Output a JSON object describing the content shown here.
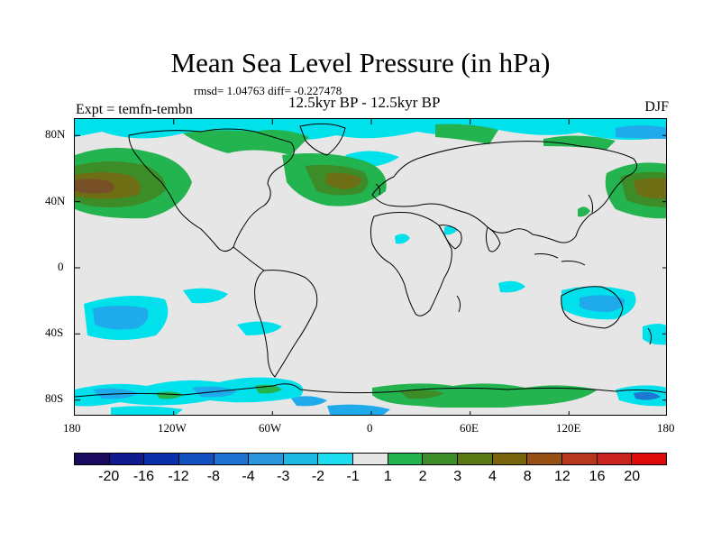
{
  "title": "Mean Sea Level Pressure (in hPa)",
  "stats": "rmsd= 1.04763 diff= -0.227478",
  "period": "12.5kyr BP - 12.5kyr BP",
  "expt": "Expt = temfn-tembn",
  "season": "DJF",
  "lat_labels": [
    "80N",
    "40N",
    "0",
    "40S",
    "80S"
  ],
  "lon_labels": [
    "180",
    "120W",
    "60W",
    "0",
    "60E",
    "120E",
    "180"
  ],
  "colorbar": {
    "colors": [
      "#1a0a5e",
      "#101a8c",
      "#0a2fa8",
      "#1250c0",
      "#1e73d2",
      "#2a96dc",
      "#1eb9e2",
      "#1edcf0",
      "#e6e6e6",
      "#23b450",
      "#3c8c28",
      "#5a7814",
      "#78640a",
      "#965014",
      "#b4371e",
      "#c8231e",
      "#dc0a0a"
    ],
    "labels": [
      "-20",
      "-16",
      "-12",
      "-8",
      "-4",
      "-3",
      "-2",
      "-1",
      "1",
      "2",
      "3",
      "4",
      "8",
      "12",
      "16",
      "20"
    ]
  },
  "palette": {
    "neutral": "#e6e6e6",
    "cyan": "#00e1eb",
    "light_blue": "#1eaaeb",
    "blue": "#1e78d2",
    "green": "#23b450",
    "dark_green": "#3c8c28",
    "olive": "#6e6e14",
    "brown": "#785028"
  }
}
